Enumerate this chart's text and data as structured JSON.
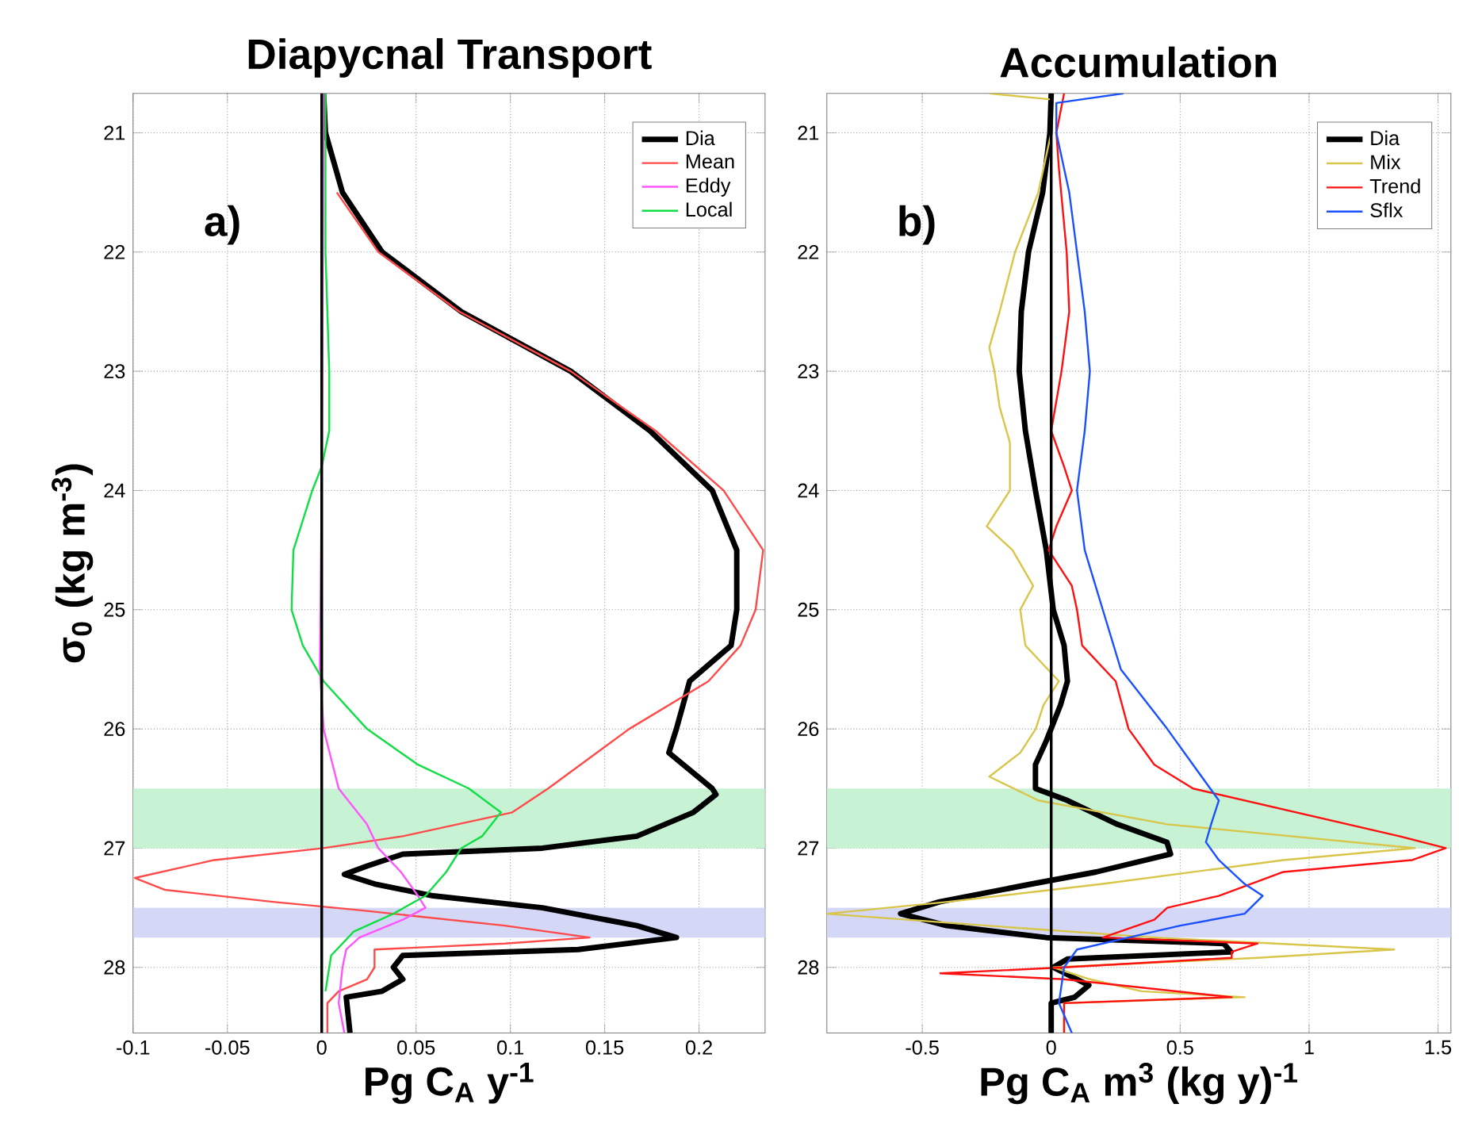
{
  "chart_data": [
    {
      "type": "line",
      "title": "Diapycnal Transport",
      "xlabel": "Pg C$_{A}$ y$^{-1}$",
      "ylabel": "σ$_{0}$ (kg m$^{-3}$)",
      "annotations": [
        "a)"
      ],
      "xlim": [
        -0.1,
        0.235
      ],
      "ylim": [
        28.55,
        20.67
      ],
      "xticks": [
        -0.1,
        -0.05,
        0,
        0.05,
        0.1,
        0.15,
        0.2
      ],
      "yticks": [
        21,
        22,
        23,
        24,
        25,
        26,
        27,
        28
      ],
      "grid": true,
      "legend": "top right",
      "bands": [
        {
          "axis": "y",
          "from": 26.5,
          "to": 27.0,
          "color": "#c8f2d4"
        },
        {
          "axis": "y",
          "from": 27.5,
          "to": 27.75,
          "color": "#d4d8f6"
        }
      ],
      "ref_lines": [
        {
          "axis": "x",
          "value": 0,
          "color": "#000000"
        }
      ],
      "series": [
        {
          "name": "Dia",
          "color": "#000000",
          "x": [
            0.001,
            0.002,
            0.011,
            0.032,
            0.074,
            0.132,
            0.174,
            0.207,
            0.22,
            0.22,
            0.217,
            0.195,
            0.188,
            0.184,
            0.207,
            0.209,
            0.197,
            0.167,
            0.117,
            0.043,
            0.024,
            0.012,
            0.028,
            0.059,
            0.117,
            0.167,
            0.188,
            0.136,
            0.043,
            0.038,
            0.043,
            0.032,
            0.013,
            0.015
          ],
          "values": [
            20.67,
            21.0,
            21.5,
            22.0,
            22.5,
            23.0,
            23.5,
            24.0,
            24.5,
            25.0,
            25.3,
            25.6,
            26.0,
            26.2,
            26.5,
            26.55,
            26.7,
            26.9,
            27.0,
            27.05,
            27.15,
            27.22,
            27.3,
            27.4,
            27.5,
            27.65,
            27.75,
            27.85,
            27.9,
            28.0,
            28.1,
            28.2,
            28.25,
            28.55
          ]
        },
        {
          "name": "Mean",
          "color": "#ff4a4a",
          "x": [
            0.008,
            0.03,
            0.073,
            0.132,
            0.177,
            0.213,
            0.234,
            0.23,
            0.222,
            0.205,
            0.163,
            0.12,
            0.101,
            0.043,
            0.001,
            -0.057,
            -0.099,
            -0.083,
            -0.026,
            0.02,
            0.097,
            0.142,
            0.097,
            0.028,
            0.028,
            0.024,
            0.009,
            0.003,
            0.003
          ],
          "values": [
            21.5,
            22.0,
            22.5,
            23.0,
            23.5,
            24.0,
            24.5,
            25.0,
            25.3,
            25.6,
            26.0,
            26.5,
            26.7,
            26.9,
            27.0,
            27.1,
            27.25,
            27.35,
            27.45,
            27.52,
            27.65,
            27.75,
            27.8,
            27.85,
            28.0,
            28.1,
            28.2,
            28.3,
            28.55
          ]
        },
        {
          "name": "Eddy",
          "color": "#ff55ff",
          "x": [
            0.001,
            0.0,
            -0.001,
            0.001,
            0.009,
            0.024,
            0.03,
            0.042,
            0.051,
            0.055,
            0.043,
            0.02,
            0.013,
            0.011,
            0.009,
            0.012
          ],
          "values": [
            20.67,
            24.0,
            25.5,
            26.0,
            26.5,
            26.8,
            27.0,
            27.2,
            27.4,
            27.5,
            27.6,
            27.75,
            27.85,
            28.0,
            28.3,
            28.55
          ]
        },
        {
          "name": "Local",
          "color": "#11dd44",
          "x": [
            0.002,
            0.002,
            0.004,
            0.004,
            0.0,
            -0.005,
            -0.015,
            -0.016,
            -0.01,
            0.001,
            0.024,
            0.051,
            0.078,
            0.095,
            0.085,
            0.074,
            0.066,
            0.055,
            0.038,
            0.017,
            0.005,
            0.004,
            0.002
          ],
          "values": [
            20.67,
            22.0,
            23.0,
            23.5,
            23.8,
            24.0,
            24.5,
            25.0,
            25.3,
            25.6,
            26.0,
            26.3,
            26.5,
            26.7,
            26.9,
            27.0,
            27.2,
            27.4,
            27.55,
            27.7,
            27.9,
            28.0,
            28.2
          ]
        }
      ]
    },
    {
      "type": "line",
      "title": "Accumulation",
      "xlabel": "Pg C$_{A}$ m$^{3}$ (kg y)$^{-1}$",
      "annotations": [
        "b)"
      ],
      "xlim": [
        -0.87,
        1.55
      ],
      "ylim": [
        28.55,
        20.67
      ],
      "xticks": [
        -0.5,
        0,
        0.5,
        1,
        1.5
      ],
      "yticks": [
        21,
        22,
        23,
        24,
        25,
        26,
        27,
        28
      ],
      "grid": true,
      "legend": "top right",
      "bands": [
        {
          "axis": "y",
          "from": 26.5,
          "to": 27.0,
          "color": "#c8f2d4"
        },
        {
          "axis": "y",
          "from": 27.5,
          "to": 27.75,
          "color": "#d4d8f6"
        }
      ],
      "ref_lines": [
        {
          "axis": "x",
          "value": 0,
          "color": "#000000"
        }
      ],
      "series": [
        {
          "name": "Dia",
          "color": "#000000",
          "x": [
            0.0,
            -0.005,
            -0.033,
            -0.088,
            -0.116,
            -0.124,
            -0.1,
            -0.061,
            -0.019,
            0.008,
            0.05,
            0.063,
            0.036,
            -0.019,
            -0.061,
            -0.061,
            0.063,
            0.256,
            0.449,
            0.463,
            0.174,
            -0.074,
            -0.433,
            -0.584,
            -0.405,
            -0.019,
            0.669,
            0.697,
            0.063,
            0.008,
            0.146,
            0.091,
            0.0,
            0.0
          ],
          "values": [
            20.67,
            21.0,
            21.5,
            22.0,
            22.5,
            23.0,
            23.5,
            24.0,
            24.5,
            25.0,
            25.3,
            25.6,
            25.8,
            26.1,
            26.3,
            26.5,
            26.6,
            26.8,
            26.95,
            27.05,
            27.2,
            27.3,
            27.45,
            27.55,
            27.65,
            27.75,
            27.8,
            27.87,
            27.93,
            28.0,
            28.15,
            28.25,
            28.3,
            28.55
          ]
        },
        {
          "name": "Mix",
          "color": "#d8c64a",
          "x": [
            -0.24,
            0.0,
            0.0,
            -0.05,
            -0.14,
            -0.2,
            -0.24,
            -0.22,
            -0.2,
            -0.16,
            -0.16,
            -0.25,
            -0.15,
            -0.07,
            -0.12,
            -0.1,
            0.03,
            -0.03,
            -0.06,
            -0.12,
            -0.24,
            -0.05,
            0.45,
            1.41,
            0.9,
            0.2,
            -0.4,
            -0.87,
            -0.25,
            0.4,
            1.33,
            0.8,
            0.008,
            0.15,
            0.35,
            0.75,
            0.05,
            0.05
          ],
          "values": [
            20.67,
            20.72,
            21.0,
            21.5,
            22.0,
            22.5,
            22.8,
            23.0,
            23.3,
            23.6,
            24.0,
            24.3,
            24.5,
            24.8,
            25.0,
            25.3,
            25.6,
            25.8,
            26.0,
            26.2,
            26.4,
            26.6,
            26.8,
            27.0,
            27.1,
            27.3,
            27.45,
            27.55,
            27.65,
            27.75,
            27.85,
            27.92,
            28.0,
            28.1,
            28.2,
            28.25,
            28.3,
            28.55
          ]
        },
        {
          "name": "Trend",
          "color": "#ff1010",
          "x": [
            0.05,
            0.02,
            0.03,
            0.06,
            0.07,
            0.04,
            0.0,
            0.05,
            0.08,
            0.02,
            -0.01,
            0.08,
            0.1,
            0.12,
            0.25,
            0.3,
            0.4,
            0.55,
            0.95,
            1.35,
            1.53,
            1.4,
            0.9,
            0.65,
            0.45,
            0.4,
            0.2,
            0.8,
            0.7,
            0.7,
            0.05,
            -0.43,
            0.05,
            0.7,
            0.05,
            0.05
          ],
          "values": [
            20.67,
            21.0,
            21.3,
            22.0,
            22.5,
            23.0,
            23.5,
            23.8,
            24.0,
            24.3,
            24.5,
            24.8,
            25.0,
            25.3,
            25.6,
            26.0,
            26.3,
            26.5,
            26.7,
            26.9,
            27.0,
            27.1,
            27.2,
            27.4,
            27.5,
            27.6,
            27.75,
            27.8,
            27.87,
            27.92,
            28.0,
            28.05,
            28.1,
            28.25,
            28.3,
            28.55
          ]
        },
        {
          "name": "Sflx",
          "color": "#1a50ff",
          "x": [
            0.28,
            0.02,
            0.02,
            0.07,
            0.1,
            0.13,
            0.15,
            0.13,
            0.1,
            0.13,
            0.2,
            0.27,
            0.45,
            0.55,
            0.65,
            0.62,
            0.6,
            0.65,
            0.75,
            0.82,
            0.75,
            0.5,
            0.3,
            0.1,
            0.05,
            0.03,
            0.08
          ],
          "values": [
            20.67,
            20.75,
            21.0,
            21.5,
            22.0,
            22.5,
            23.0,
            23.5,
            24.0,
            24.5,
            25.0,
            25.5,
            26.0,
            26.3,
            26.6,
            26.8,
            26.95,
            27.1,
            27.3,
            27.4,
            27.55,
            27.65,
            27.75,
            27.85,
            28.0,
            28.3,
            28.55
          ]
        }
      ]
    }
  ]
}
